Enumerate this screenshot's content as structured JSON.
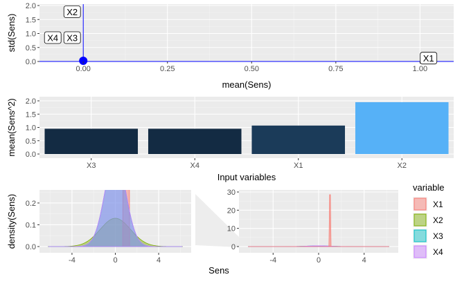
{
  "colors": {
    "panel_bg": "#ebebeb",
    "grid_major": "#ffffff",
    "axis_text": "#4d4d4d",
    "axis_title": "#000000",
    "scatter_line": "#0000ff",
    "X1": "#f8766d",
    "X2": "#7cae00",
    "X3": "#00bfc4",
    "X4": "#c77cff",
    "bar_dark": "#132b43",
    "bar_mid": "#1d3e5e",
    "bar_light": "#56b1f7"
  },
  "chart_data": [
    {
      "type": "scatter",
      "xlabel": "mean(Sens)",
      "ylabel": "std(Sens)",
      "xlim": [
        -0.13,
        1.1
      ],
      "ylim": [
        0,
        2.0
      ],
      "xticks": [
        "0.00",
        "0.25",
        "0.50",
        "0.75",
        "1.00"
      ],
      "xtick_values": [
        0,
        0.25,
        0.5,
        0.75,
        1.0
      ],
      "yticks": [
        "0.0",
        "0.5",
        "1.0",
        "1.5",
        "2.0"
      ],
      "ytick_values": [
        0,
        0.5,
        1.0,
        1.5,
        2.0
      ],
      "points": [
        {
          "label": "X1",
          "x": 1.05,
          "y": 0.02
        },
        {
          "label": "X2",
          "x": 0.0,
          "y": 1.95
        },
        {
          "label": "X3",
          "x": 0.0,
          "y": 0.95
        },
        {
          "label": "X4",
          "x": 0.0,
          "y": 0.95
        }
      ],
      "marker_cluster": {
        "x": 0.0,
        "y": 0.0
      }
    },
    {
      "type": "bar",
      "xlabel": "Input variables",
      "ylabel": "mean(Sens^2)",
      "categories": [
        "X3",
        "X4",
        "X1",
        "X2"
      ],
      "values": [
        0.95,
        0.95,
        1.07,
        1.95
      ],
      "ylim": [
        0,
        2.0
      ],
      "yticks": [
        "0.0",
        "0.5",
        "1.0",
        "1.5",
        "2.0"
      ],
      "ytick_values": [
        0,
        0.5,
        1.0,
        1.5,
        2.0
      ]
    },
    {
      "type": "area",
      "xlabel": "Sens",
      "ylabel": "density(Sens)",
      "xlim": [
        -7,
        7
      ],
      "ylim": [
        0,
        0.26
      ],
      "xticks": [
        "-4",
        "0",
        "4"
      ],
      "xtick_values": [
        -4,
        0,
        4
      ],
      "yticks": [
        "0.0",
        "0.1",
        "0.2"
      ],
      "ytick_values": [
        0,
        0.1,
        0.2
      ],
      "series": [
        {
          "name": "X1",
          "shape": "spike",
          "center": 1.0,
          "sd": 0.02,
          "peak": 28.5
        },
        {
          "name": "X2",
          "shape": "normal",
          "center": 0.0,
          "sd": 1.4,
          "peak": 0.13
        },
        {
          "name": "X3",
          "shape": "normal",
          "center": 0.0,
          "sd": 0.95,
          "peak": 0.42
        },
        {
          "name": "X4",
          "shape": "normal",
          "center": 0.0,
          "sd": 0.95,
          "peak": 0.42
        }
      ]
    },
    {
      "type": "area",
      "xlim": [
        -7,
        7
      ],
      "ylim": [
        0,
        30
      ],
      "xticks": [
        "-4",
        "0",
        "4"
      ],
      "xtick_values": [
        -4,
        0,
        4
      ],
      "yticks": [
        "0",
        "10",
        "20",
        "30"
      ],
      "ytick_values": [
        0,
        10,
        20,
        30
      ]
    }
  ],
  "legend": {
    "title": "variable",
    "items": [
      "X1",
      "X2",
      "X3",
      "X4"
    ]
  }
}
